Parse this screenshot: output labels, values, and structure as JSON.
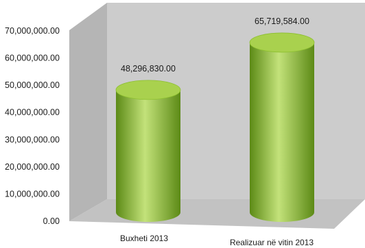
{
  "chart_data": {
    "type": "bar",
    "style": "3d-cylinder",
    "title": "",
    "xlabel": "",
    "ylabel": "",
    "categories": [
      "Buxheti 2013",
      "Realizuar në vitin 2013"
    ],
    "values": [
      48296830.0,
      65719584.0
    ],
    "value_labels": [
      "48,296,830.00",
      "65,719,584.00"
    ],
    "yticks": [
      "0.00",
      "10,000,000.00",
      "20,000,000.00",
      "30,000,000.00",
      "40,000,000.00",
      "50,000,000.00",
      "60,000,000.00",
      "70,000,000.00"
    ],
    "ylim": [
      0,
      70000000
    ],
    "grid": false,
    "legend": "none",
    "colors": {
      "bar_light": "#c3e27a",
      "bar_mid": "#8cbf2f",
      "bar_dark": "#5c8a16",
      "bar_top": "#a9d14e",
      "back_wall": "#cccccc",
      "side_wall": "#b5b5b5",
      "floor": "#c2c2c2"
    }
  }
}
